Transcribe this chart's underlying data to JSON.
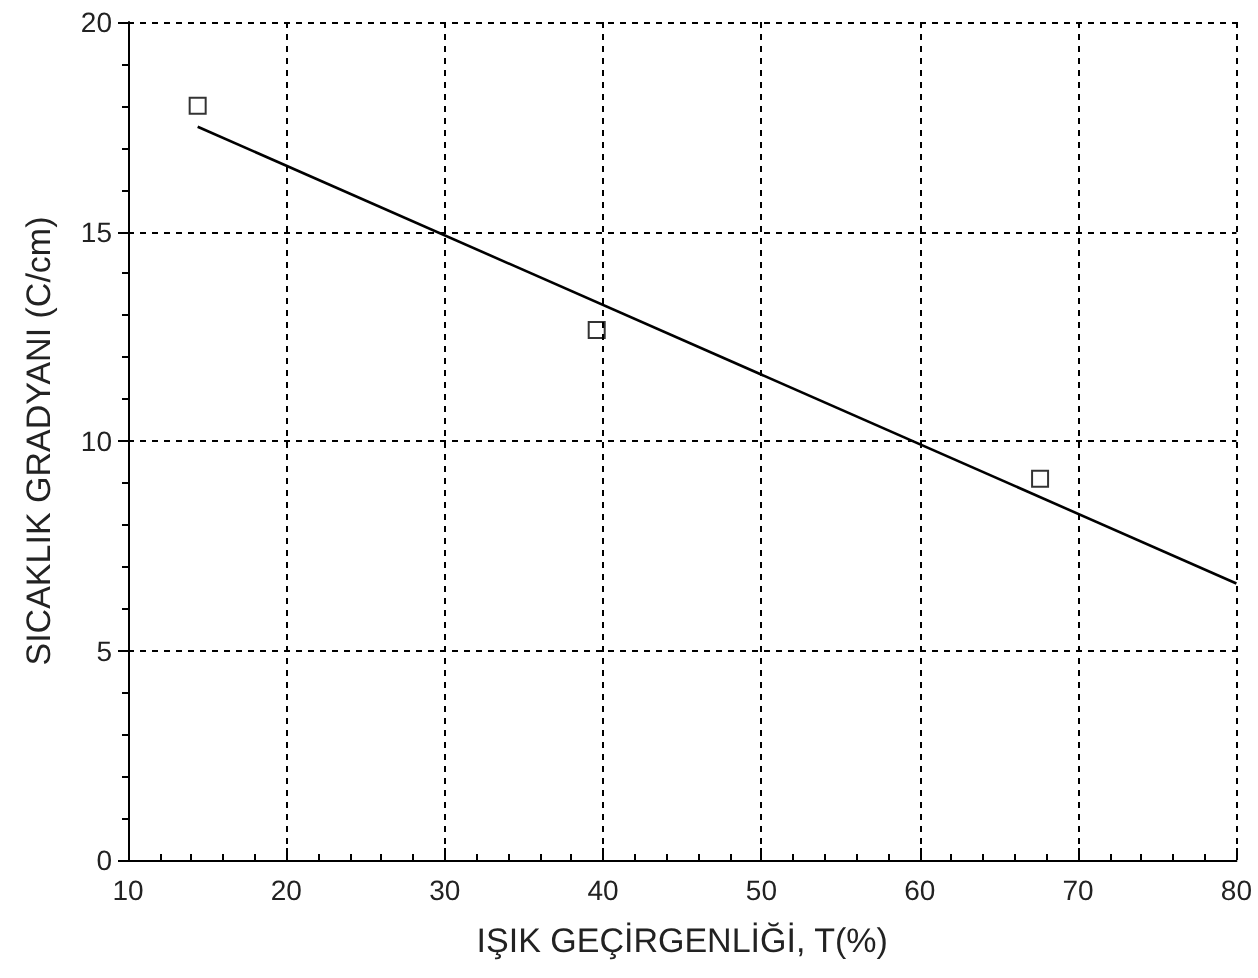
{
  "chart_data": {
    "type": "scatter",
    "xlabel": "IŞIK GEÇİRGENLİĞİ, T(%)",
    "ylabel": "SICAKLIK GRADYANI (C/cm)",
    "xlim": [
      10,
      80
    ],
    "xticks": [
      10,
      20,
      30,
      40,
      50,
      60,
      70,
      80
    ],
    "ylim": [
      0,
      20
    ],
    "yticks": [
      0,
      5,
      10,
      15,
      20
    ],
    "grid": true,
    "series": [
      {
        "color": "#000000",
        "marker": "square",
        "x": [
          14.4,
          39.6,
          67.6
        ],
        "values": [
          18.0,
          12.65,
          9.1
        ]
      },
      {
        "type": "line",
        "color": "#000000",
        "marker": "none",
        "line_style": "solid",
        "x": [
          14.4,
          80
        ],
        "values": [
          17.5,
          6.6
        ]
      }
    ]
  }
}
